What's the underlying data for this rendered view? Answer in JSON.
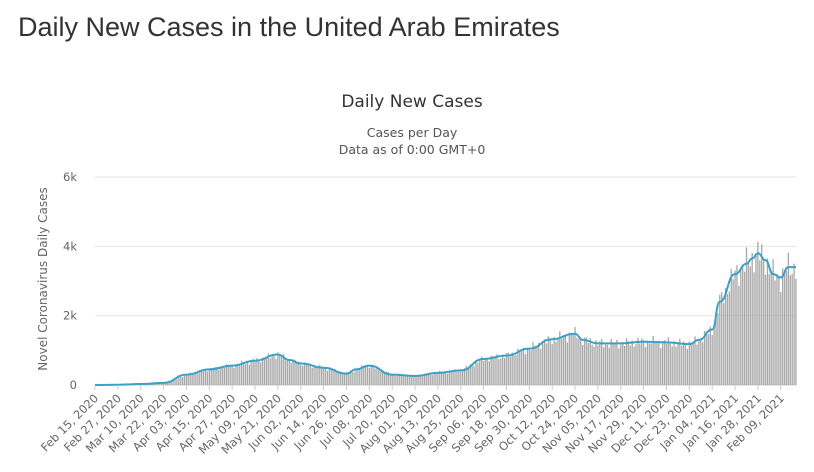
{
  "page": {
    "heading": "Daily New Cases in the United Arab Emirates"
  },
  "chart_data": {
    "type": "bar",
    "title": "Daily New Cases",
    "subtitle_lines": [
      "Cases per Day",
      "Data as of 0:00 GMT+0"
    ],
    "xlabel": "",
    "ylabel": "Novel Coronavirus Daily Cases",
    "ylim": [
      0,
      6000
    ],
    "yticks": [
      {
        "value": 0,
        "label": "0"
      },
      {
        "value": 2000,
        "label": "2k"
      },
      {
        "value": 4000,
        "label": "4k"
      },
      {
        "value": 6000,
        "label": "6k"
      }
    ],
    "x_range": [
      "2020-02-15",
      "2021-02-17"
    ],
    "xtick_labels": [
      "Feb 15, 2020",
      "Feb 27, 2020",
      "Mar 10, 2020",
      "Mar 22, 2020",
      "Apr 03, 2020",
      "Apr 15, 2020",
      "Apr 27, 2020",
      "May 09, 2020",
      "May 21, 2020",
      "Jun 02, 2020",
      "Jun 14, 2020",
      "Jun 26, 2020",
      "Jul 08, 2020",
      "Jul 20, 2020",
      "Aug 01, 2020",
      "Aug 13, 2020",
      "Aug 25, 2020",
      "Sep 06, 2020",
      "Sep 18, 2020",
      "Sep 30, 2020",
      "Oct 12, 2020",
      "Oct 24, 2020",
      "Nov 05, 2020",
      "Nov 17, 2020",
      "Nov 29, 2020",
      "Dec 11, 2020",
      "Dec 23, 2020",
      "Jan 04, 2021",
      "Jan 16, 2021",
      "Jan 28, 2021",
      "Feb 09, 2021"
    ],
    "grid": true,
    "legend": "none",
    "series": [
      {
        "kind": "bar",
        "color": "#a8a8a8",
        "x": [
          "2020-02-15",
          "2020-02-27",
          "2020-03-10",
          "2020-03-22",
          "2020-04-03",
          "2020-04-15",
          "2020-04-27",
          "2020-05-09",
          "2020-05-21",
          "2020-05-27",
          "2020-06-02",
          "2020-06-14",
          "2020-06-26",
          "2020-07-01",
          "2020-07-08",
          "2020-07-20",
          "2020-08-01",
          "2020-08-13",
          "2020-08-25",
          "2020-09-06",
          "2020-09-18",
          "2020-09-30",
          "2020-10-12",
          "2020-10-24",
          "2020-10-28",
          "2020-11-05",
          "2020-11-17",
          "2020-11-29",
          "2020-12-11",
          "2020-12-23",
          "2020-12-28",
          "2021-01-04",
          "2021-01-08",
          "2021-01-16",
          "2021-01-22",
          "2021-01-25",
          "2021-01-28",
          "2021-02-01",
          "2021-02-05",
          "2021-02-09",
          "2021-02-13",
          "2021-02-17"
        ],
        "values": [
          0,
          10,
          30,
          60,
          300,
          450,
          560,
          700,
          880,
          720,
          620,
          500,
          330,
          450,
          560,
          300,
          260,
          350,
          420,
          750,
          850,
          1050,
          1320,
          1480,
          1300,
          1200,
          1200,
          1250,
          1230,
          1180,
          1300,
          1600,
          2400,
          3200,
          3500,
          3650,
          3800,
          3600,
          3200,
          3100,
          3400,
          3400
        ]
      },
      {
        "kind": "line",
        "color": "#3aa1c7",
        "x": [
          "2020-02-15",
          "2020-02-27",
          "2020-03-10",
          "2020-03-22",
          "2020-04-03",
          "2020-04-15",
          "2020-04-27",
          "2020-05-09",
          "2020-05-21",
          "2020-05-27",
          "2020-06-02",
          "2020-06-14",
          "2020-06-26",
          "2020-07-01",
          "2020-07-08",
          "2020-07-20",
          "2020-08-01",
          "2020-08-13",
          "2020-08-25",
          "2020-09-06",
          "2020-09-18",
          "2020-09-30",
          "2020-10-12",
          "2020-10-24",
          "2020-10-28",
          "2020-11-05",
          "2020-11-17",
          "2020-11-29",
          "2020-12-11",
          "2020-12-23",
          "2020-12-28",
          "2021-01-04",
          "2021-01-08",
          "2021-01-16",
          "2021-01-22",
          "2021-01-25",
          "2021-01-28",
          "2021-02-01",
          "2021-02-05",
          "2021-02-09",
          "2021-02-13",
          "2021-02-17"
        ],
        "values": [
          0,
          10,
          30,
          60,
          300,
          450,
          560,
          700,
          880,
          720,
          620,
          500,
          330,
          450,
          560,
          300,
          260,
          350,
          420,
          750,
          850,
          1050,
          1320,
          1480,
          1300,
          1200,
          1200,
          1250,
          1230,
          1180,
          1300,
          1600,
          2400,
          3200,
          3500,
          3650,
          3800,
          3600,
          3200,
          3100,
          3400,
          3400
        ]
      }
    ]
  }
}
